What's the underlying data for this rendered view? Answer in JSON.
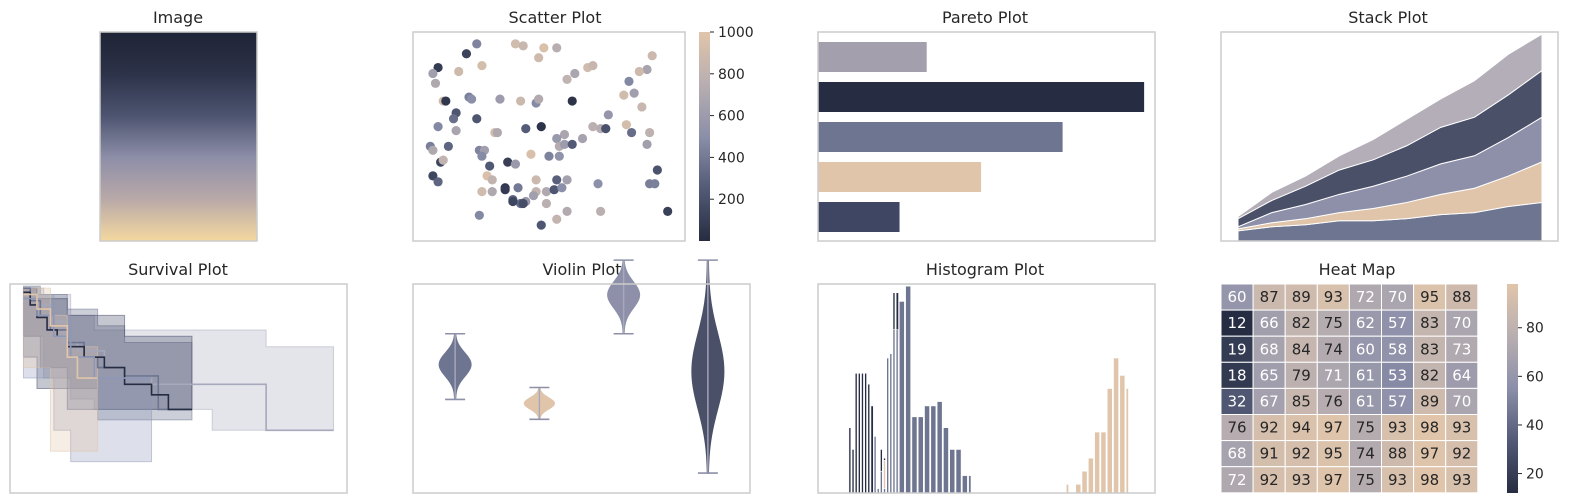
{
  "colors": {
    "navy": "#262d42",
    "slate": "#3f4663",
    "steel": "#6e7590",
    "lavender": "#8d90a8",
    "mauve": "#a49fac",
    "sand": "#e0c5aa",
    "frame": "#cccccc"
  },
  "chart_data": [
    {
      "type": "image",
      "title": "Image",
      "gradient": [
        "#1f2336",
        "#2c3248",
        "#4d5470",
        "#8d8ea8",
        "#b9a9a8",
        "#f4d8a0"
      ]
    },
    {
      "type": "scatter",
      "title": "Scatter Plot",
      "xlim": [
        0,
        1
      ],
      "ylim": [
        0,
        1
      ],
      "colorbar": {
        "min": 0,
        "max": 1000,
        "ticks": [
          "200",
          "400",
          "600",
          "800",
          "1000"
        ],
        "tick_values": [
          200,
          400,
          600,
          800,
          1000
        ]
      },
      "points": [
        [
          0.07,
          0.85,
          80
        ],
        [
          0.05,
          0.82,
          620
        ],
        [
          0.06,
          0.77,
          700
        ],
        [
          0.18,
          0.92,
          120
        ],
        [
          0.22,
          0.97,
          450
        ],
        [
          0.37,
          0.97,
          900
        ],
        [
          0.4,
          0.96,
          850
        ],
        [
          0.48,
          0.95,
          950
        ],
        [
          0.53,
          0.95,
          750
        ],
        [
          0.46,
          0.9,
          880
        ],
        [
          0.15,
          0.83,
          880
        ],
        [
          0.24,
          0.86,
          920
        ],
        [
          0.09,
          0.68,
          900
        ],
        [
          0.1,
          0.68,
          60
        ],
        [
          0.19,
          0.7,
          430
        ],
        [
          0.2,
          0.69,
          500
        ],
        [
          0.14,
          0.62,
          220
        ],
        [
          0.13,
          0.59,
          350
        ],
        [
          0.31,
          0.69,
          600
        ],
        [
          0.39,
          0.68,
          870
        ],
        [
          0.45,
          0.67,
          480
        ],
        [
          0.46,
          0.69,
          720
        ],
        [
          0.57,
          0.79,
          800
        ],
        [
          0.6,
          0.82,
          680
        ],
        [
          0.65,
          0.85,
          900
        ],
        [
          0.67,
          0.86,
          840
        ],
        [
          0.81,
          0.78,
          470
        ],
        [
          0.79,
          0.71,
          900
        ],
        [
          0.83,
          0.72,
          620
        ],
        [
          0.9,
          0.91,
          870
        ],
        [
          0.88,
          0.84,
          660
        ],
        [
          0.85,
          0.83,
          880
        ],
        [
          0.73,
          0.61,
          560
        ],
        [
          0.7,
          0.54,
          740
        ],
        [
          0.72,
          0.54,
          200
        ],
        [
          0.82,
          0.52,
          340
        ],
        [
          0.8,
          0.56,
          920
        ],
        [
          0.86,
          0.65,
          850
        ],
        [
          0.89,
          0.52,
          790
        ],
        [
          0.59,
          0.68,
          40
        ],
        [
          0.07,
          0.55,
          470
        ],
        [
          0.14,
          0.53,
          670
        ],
        [
          0.22,
          0.59,
          230
        ],
        [
          0.29,
          0.52,
          910
        ],
        [
          0.3,
          0.52,
          700
        ],
        [
          0.41,
          0.54,
          260
        ],
        [
          0.47,
          0.55,
          40
        ],
        [
          0.67,
          0.55,
          760
        ],
        [
          0.56,
          0.51,
          680
        ],
        [
          0.63,
          0.49,
          650
        ],
        [
          0.53,
          0.49,
          580
        ],
        [
          0.04,
          0.45,
          420
        ],
        [
          0.05,
          0.43,
          700
        ],
        [
          0.11,
          0.45,
          300
        ],
        [
          0.08,
          0.37,
          130
        ],
        [
          0.09,
          0.38,
          800
        ],
        [
          0.23,
          0.43,
          450
        ],
        [
          0.25,
          0.43,
          620
        ],
        [
          0.24,
          0.4,
          480
        ],
        [
          0.27,
          0.35,
          240
        ],
        [
          0.34,
          0.37,
          100
        ],
        [
          0.37,
          0.36,
          580
        ],
        [
          0.43,
          0.41,
          950
        ],
        [
          0.5,
          0.4,
          440
        ],
        [
          0.54,
          0.4,
          530
        ],
        [
          0.54,
          0.45,
          730
        ],
        [
          0.56,
          0.46,
          600
        ],
        [
          0.59,
          0.46,
          250
        ],
        [
          0.88,
          0.46,
          630
        ],
        [
          0.05,
          0.3,
          140
        ],
        [
          0.07,
          0.27,
          300
        ],
        [
          0.26,
          0.3,
          950
        ],
        [
          0.28,
          0.28,
          800
        ],
        [
          0.45,
          0.28,
          870
        ],
        [
          0.53,
          0.28,
          280
        ],
        [
          0.57,
          0.28,
          640
        ],
        [
          0.24,
          0.22,
          900
        ],
        [
          0.28,
          0.22,
          700
        ],
        [
          0.33,
          0.24,
          60
        ],
        [
          0.38,
          0.24,
          400
        ],
        [
          0.45,
          0.22,
          820
        ],
        [
          0.49,
          0.22,
          710
        ],
        [
          0.52,
          0.23,
          230
        ],
        [
          0.55,
          0.24,
          500
        ],
        [
          0.44,
          0.2,
          620
        ],
        [
          0.41,
          0.17,
          560
        ],
        [
          0.39,
          0.16,
          330
        ],
        [
          0.36,
          0.18,
          300
        ],
        [
          0.4,
          0.16,
          180
        ],
        [
          0.23,
          0.1,
          470
        ],
        [
          0.36,
          0.17,
          140
        ],
        [
          0.33,
          0.23,
          80
        ],
        [
          0.49,
          0.16,
          770
        ],
        [
          0.47,
          0.05,
          230
        ],
        [
          0.57,
          0.12,
          720
        ],
        [
          0.7,
          0.12,
          760
        ],
        [
          0.92,
          0.33,
          210
        ],
        [
          0.89,
          0.26,
          420
        ],
        [
          0.91,
          0.26,
          430
        ],
        [
          0.96,
          0.12,
          110
        ],
        [
          0.53,
          0.08,
          820
        ],
        [
          0.69,
          0.26,
          510
        ]
      ]
    },
    {
      "type": "bar",
      "orientation": "horizontal",
      "title": "Pareto Plot",
      "values": [
        4,
        12,
        9,
        6,
        3
      ],
      "xlim": [
        0,
        12.4
      ],
      "colors": [
        "#a49fac",
        "#262d42",
        "#6e7590",
        "#e0c5aa",
        "#3f4663"
      ]
    },
    {
      "type": "area",
      "title": "Stack Plot",
      "x": [
        0,
        1,
        2,
        3,
        4,
        5,
        6,
        7,
        8,
        9
      ],
      "ylim": [
        0,
        10.3
      ],
      "series": [
        {
          "values": [
            0.5,
            0.7,
            0.8,
            1.0,
            1.0,
            1.1,
            1.3,
            1.4,
            1.7,
            1.9
          ],
          "color": "#6e7590"
        },
        {
          "values": [
            0.1,
            0.2,
            0.3,
            0.4,
            0.6,
            0.8,
            1.0,
            1.2,
            1.5,
            2.0
          ],
          "color": "#e0c5aa"
        },
        {
          "values": [
            0.1,
            0.5,
            0.7,
            0.9,
            1.1,
            1.3,
            1.5,
            1.6,
            1.9,
            2.2
          ],
          "color": "#8d90a8"
        },
        {
          "values": [
            0.4,
            0.6,
            0.9,
            1.2,
            1.3,
            1.5,
            1.8,
            1.9,
            2.1,
            2.3
          ],
          "color": "#4a5068"
        },
        {
          "values": [
            0.1,
            0.4,
            0.5,
            0.7,
            1.0,
            1.3,
            1.4,
            1.8,
            2.0,
            1.8
          ],
          "color": "#b3aeb8"
        }
      ]
    },
    {
      "type": "line",
      "subtype": "survival",
      "title": "Survival Plot",
      "xlim": [
        0,
        100
      ],
      "ylim": [
        0,
        1
      ],
      "bands": [
        {
          "x": [
            4,
            10,
            18,
            25,
            60,
            76,
            96
          ],
          "low": [
            0.92,
            0.75,
            0.55,
            0.45,
            0.4,
            0.3,
            0.3
          ],
          "high": [
            0.98,
            0.95,
            0.85,
            0.78,
            0.78,
            0.7,
            0.7
          ],
          "color": "#a6a8bc",
          "opacity": 0.3
        },
        {
          "x": [
            4,
            9,
            17,
            26,
            34,
            54
          ],
          "low": [
            0.9,
            0.75,
            0.6,
            0.5,
            0.35,
            0.35
          ],
          "high": [
            0.99,
            0.95,
            0.88,
            0.8,
            0.72,
            0.72
          ],
          "color": "#6e7590",
          "opacity": 0.35
        },
        {
          "x": [
            4,
            8,
            17,
            34,
            54
          ],
          "low": [
            0.85,
            0.65,
            0.5,
            0.4,
            0.4
          ],
          "high": [
            0.98,
            0.93,
            0.85,
            0.75,
            0.75
          ],
          "color": "#3f4663",
          "opacity": 0.3
        },
        {
          "x": [
            4,
            13,
            18,
            25,
            42
          ],
          "low": [
            0.8,
            0.55,
            0.3,
            0.15,
            0.15
          ],
          "high": [
            0.95,
            0.85,
            0.7,
            0.55,
            0.55
          ],
          "color": "#8d97b8",
          "opacity": 0.3
        },
        {
          "x": [
            4,
            12,
            17,
            26
          ],
          "low": [
            0.85,
            0.6,
            0.2,
            0.2
          ],
          "high": [
            0.98,
            0.85,
            0.7,
            0.7
          ],
          "color": "#e0c5aa",
          "opacity": 0.3
        }
      ],
      "lines": [
        {
          "x": [
            4,
            8,
            12,
            16,
            20,
            28,
            34,
            42,
            54,
            60,
            76,
            96
          ],
          "y": [
            0.95,
            0.9,
            0.82,
            0.72,
            0.68,
            0.6,
            0.56,
            0.52,
            0.52,
            0.52,
            0.3,
            0.3
          ],
          "color": "#a6a8bc"
        },
        {
          "x": [
            4,
            6,
            9,
            12,
            17,
            22,
            26,
            34,
            44,
            54
          ],
          "y": [
            0.98,
            0.92,
            0.85,
            0.78,
            0.72,
            0.65,
            0.6,
            0.56,
            0.4,
            0.4
          ],
          "color": "#6e7590"
        },
        {
          "x": [
            4,
            6,
            8,
            11,
            14,
            17,
            22,
            28,
            34,
            42,
            47,
            54
          ],
          "y": [
            0.96,
            0.9,
            0.84,
            0.78,
            0.75,
            0.7,
            0.65,
            0.6,
            0.52,
            0.47,
            0.4,
            0.4
          ],
          "color": "#262d42"
        },
        {
          "x": [
            4,
            8,
            13,
            18,
            25,
            34,
            42
          ],
          "y": [
            0.93,
            0.85,
            0.75,
            0.65,
            0.55,
            0.55,
            0.55
          ],
          "color": "#8d97b8"
        },
        {
          "x": [
            4,
            8,
            12,
            17,
            20,
            26
          ],
          "y": [
            0.95,
            0.88,
            0.8,
            0.65,
            0.55,
            0.55
          ],
          "color": "#e0c5aa"
        }
      ]
    },
    {
      "type": "violin",
      "title": "Violin Plot",
      "ylim": [
        -3.5,
        7
      ],
      "violins": [
        {
          "position": 0.5,
          "min": 1.2,
          "max": 4.5,
          "center": 3.0,
          "width": 0.32,
          "color": "#6e7590"
        },
        {
          "position": 1.5,
          "min": 0.2,
          "max": 1.8,
          "center": 1.0,
          "width": 0.3,
          "color": "#e0c5aa"
        },
        {
          "position": 2.5,
          "min": 4.5,
          "max": 8.2,
          "center": 6.5,
          "width": 0.32,
          "color": "#8d90a8"
        },
        {
          "position": 3.5,
          "min": -2.5,
          "max": 8.2,
          "center": 2.5,
          "width": 0.32,
          "color": "#4a5068"
        }
      ]
    },
    {
      "type": "bar",
      "subtype": "histogram",
      "title": "Histogram Plot",
      "xlim": [
        0,
        100
      ],
      "ylim": [
        0,
        96
      ],
      "series": [
        {
          "color": "#262d42",
          "bins_x": [
            6,
            7,
            8,
            9,
            10,
            11,
            12,
            13,
            16,
            17,
            18,
            19,
            20,
            21
          ],
          "values": [
            30,
            20,
            55,
            55,
            55,
            55,
            50,
            40,
            20,
            16,
            40,
            50,
            92,
            92
          ]
        },
        {
          "color": "#e0c5aa",
          "bins_x": [
            16,
            17,
            18,
            19,
            20,
            21,
            75,
            78,
            80,
            82,
            84,
            86,
            88,
            90,
            92,
            94
          ],
          "values": [
            6,
            15,
            55,
            60,
            68,
            70,
            4,
            4,
            10,
            16,
            28,
            28,
            48,
            62,
            54,
            48
          ]
        },
        {
          "color": "#6e7590",
          "bins_x": [
            14,
            15,
            16,
            17,
            18,
            19,
            20,
            21,
            22,
            24,
            26,
            28,
            30,
            32,
            34,
            36,
            38,
            40,
            42,
            44
          ],
          "values": [
            26,
            2,
            10,
            2,
            62,
            64,
            75,
            75,
            88,
            95,
            35,
            35,
            40,
            40,
            42,
            30,
            20,
            20,
            8,
            8
          ]
        }
      ]
    },
    {
      "type": "heatmap",
      "title": "Heat Map",
      "values": [
        [
          60,
          87,
          89,
          93,
          72,
          70,
          95,
          88
        ],
        [
          12,
          66,
          82,
          75,
          62,
          57,
          83,
          70
        ],
        [
          19,
          68,
          84,
          74,
          60,
          58,
          83,
          73
        ],
        [
          18,
          65,
          79,
          71,
          61,
          53,
          82,
          64
        ],
        [
          32,
          67,
          85,
          76,
          61,
          57,
          89,
          70
        ],
        [
          76,
          92,
          94,
          97,
          75,
          93,
          98,
          93
        ],
        [
          68,
          91,
          92,
          95,
          74,
          88,
          97,
          92
        ],
        [
          72,
          92,
          93,
          97,
          75,
          93,
          98,
          93
        ]
      ],
      "vmin": 12,
      "vmax": 98,
      "colorbar": {
        "ticks": [
          "20",
          "40",
          "60",
          "80"
        ],
        "tick_values": [
          20,
          40,
          60,
          80
        ]
      },
      "colormap": [
        "#262d42",
        "#525a76",
        "#8b8fa9",
        "#b8aeb1",
        "#e0c5aa"
      ]
    }
  ]
}
